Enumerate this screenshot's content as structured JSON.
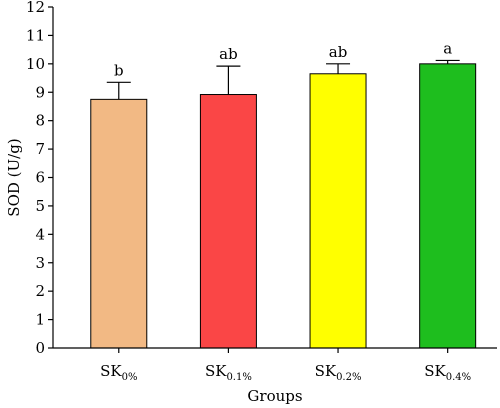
{
  "chart_data": {
    "type": "bar",
    "xlabel": "Groups",
    "ylabel": "SOD (U/g)",
    "ylim": [
      0,
      12
    ],
    "yticks": [
      0,
      1,
      2,
      3,
      4,
      5,
      6,
      7,
      8,
      9,
      10,
      11,
      12
    ],
    "grid": false,
    "categories": [
      {
        "base": "SK",
        "sub": "0%"
      },
      {
        "base": "SK",
        "sub": "0.1%"
      },
      {
        "base": "SK",
        "sub": "0.2%"
      },
      {
        "base": "SK",
        "sub": "0.4%"
      }
    ],
    "values": [
      8.75,
      8.92,
      9.65,
      10.0
    ],
    "errors": [
      0.6,
      1.0,
      0.35,
      0.12
    ],
    "significance": [
      "b",
      "ab",
      "ab",
      "a"
    ],
    "colors": [
      "#F2B984",
      "#FA4646",
      "#FFFF00",
      "#1EBE1E"
    ]
  }
}
